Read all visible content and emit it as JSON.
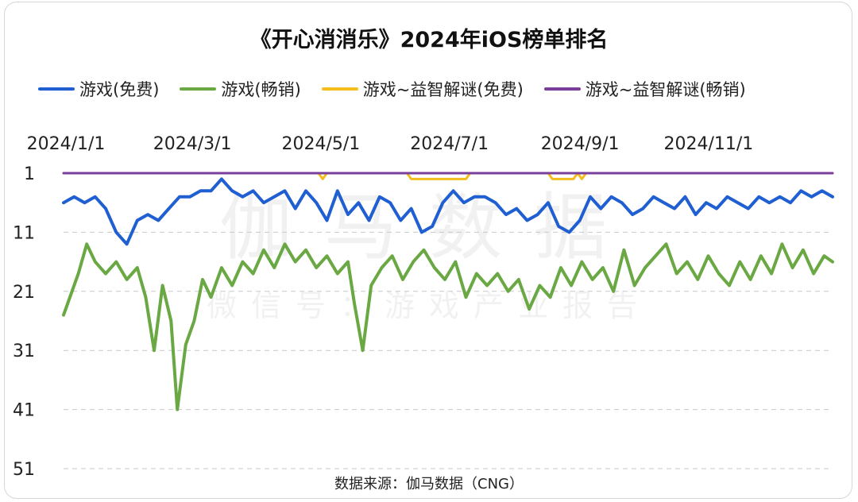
{
  "page": {
    "source": "数据来源：伽马数据（CNG）",
    "watermark_main": "伽马数据",
    "watermark_sub": "微信号：游戏产业报告"
  },
  "chart_data": {
    "type": "line",
    "title": "《开心消消乐》2024年iOS榜单排名",
    "xlabel": "",
    "ylabel": "",
    "y_inverted": true,
    "ylim": [
      1,
      51
    ],
    "yticks": [
      "1",
      "11",
      "21",
      "31",
      "41",
      "51"
    ],
    "xlim": [
      "2024-01-01",
      "2024-12-31"
    ],
    "xticks": [
      "2024/1/1",
      "2024/3/1",
      "2024/5/1",
      "2024/7/1",
      "2024/9/1",
      "2024/11/1"
    ],
    "xtick_dates": [
      "2024-01-01",
      "2024-03-01",
      "2024-05-01",
      "2024-07-01",
      "2024-09-01",
      "2024-11-01"
    ],
    "grid": "horizontal-dashed",
    "legend_position": "top",
    "series": [
      {
        "name": "游戏(免费)",
        "color": "#1f5fd1",
        "points": [
          [
            "2024-01-01",
            6
          ],
          [
            "2024-01-06",
            5
          ],
          [
            "2024-01-11",
            6
          ],
          [
            "2024-01-16",
            5
          ],
          [
            "2024-01-21",
            7
          ],
          [
            "2024-01-26",
            11
          ],
          [
            "2024-01-31",
            13
          ],
          [
            "2024-02-05",
            9
          ],
          [
            "2024-02-10",
            8
          ],
          [
            "2024-02-15",
            9
          ],
          [
            "2024-02-20",
            7
          ],
          [
            "2024-02-25",
            5
          ],
          [
            "2024-03-01",
            5
          ],
          [
            "2024-03-06",
            4
          ],
          [
            "2024-03-11",
            4
          ],
          [
            "2024-03-16",
            2
          ],
          [
            "2024-03-21",
            4
          ],
          [
            "2024-03-26",
            5
          ],
          [
            "2024-03-31",
            4
          ],
          [
            "2024-04-05",
            6
          ],
          [
            "2024-04-10",
            5
          ],
          [
            "2024-04-15",
            4
          ],
          [
            "2024-04-20",
            7
          ],
          [
            "2024-04-25",
            4
          ],
          [
            "2024-04-30",
            6
          ],
          [
            "2024-05-05",
            9
          ],
          [
            "2024-05-10",
            4
          ],
          [
            "2024-05-15",
            8
          ],
          [
            "2024-05-20",
            6
          ],
          [
            "2024-05-25",
            9
          ],
          [
            "2024-05-30",
            5
          ],
          [
            "2024-06-04",
            6
          ],
          [
            "2024-06-09",
            9
          ],
          [
            "2024-06-14",
            7
          ],
          [
            "2024-06-19",
            11
          ],
          [
            "2024-06-24",
            10
          ],
          [
            "2024-06-29",
            6
          ],
          [
            "2024-07-04",
            4
          ],
          [
            "2024-07-09",
            6
          ],
          [
            "2024-07-14",
            5
          ],
          [
            "2024-07-19",
            5
          ],
          [
            "2024-07-24",
            6
          ],
          [
            "2024-07-29",
            8
          ],
          [
            "2024-08-03",
            7
          ],
          [
            "2024-08-08",
            9
          ],
          [
            "2024-08-13",
            8
          ],
          [
            "2024-08-18",
            6
          ],
          [
            "2024-08-23",
            10
          ],
          [
            "2024-08-28",
            11
          ],
          [
            "2024-09-02",
            9
          ],
          [
            "2024-09-07",
            5
          ],
          [
            "2024-09-12",
            7
          ],
          [
            "2024-09-17",
            5
          ],
          [
            "2024-09-22",
            6
          ],
          [
            "2024-09-27",
            8
          ],
          [
            "2024-10-02",
            7
          ],
          [
            "2024-10-07",
            5
          ],
          [
            "2024-10-12",
            6
          ],
          [
            "2024-10-17",
            7
          ],
          [
            "2024-10-22",
            5
          ],
          [
            "2024-10-27",
            8
          ],
          [
            "2024-11-01",
            6
          ],
          [
            "2024-11-06",
            7
          ],
          [
            "2024-11-11",
            5
          ],
          [
            "2024-11-16",
            6
          ],
          [
            "2024-11-21",
            7
          ],
          [
            "2024-11-26",
            5
          ],
          [
            "2024-12-01",
            6
          ],
          [
            "2024-12-06",
            5
          ],
          [
            "2024-12-11",
            6
          ],
          [
            "2024-12-16",
            4
          ],
          [
            "2024-12-21",
            5
          ],
          [
            "2024-12-26",
            4
          ],
          [
            "2024-12-31",
            5
          ]
        ]
      },
      {
        "name": "游戏(畅销)",
        "color": "#6aa843",
        "points": [
          [
            "2024-01-01",
            25
          ],
          [
            "2024-01-04",
            22
          ],
          [
            "2024-01-08",
            18
          ],
          [
            "2024-01-12",
            13
          ],
          [
            "2024-01-16",
            16
          ],
          [
            "2024-01-21",
            18
          ],
          [
            "2024-01-26",
            16
          ],
          [
            "2024-01-31",
            19
          ],
          [
            "2024-02-05",
            17
          ],
          [
            "2024-02-09",
            22
          ],
          [
            "2024-02-13",
            31
          ],
          [
            "2024-02-17",
            20
          ],
          [
            "2024-02-21",
            26
          ],
          [
            "2024-02-24",
            41
          ],
          [
            "2024-02-28",
            30
          ],
          [
            "2024-03-03",
            26
          ],
          [
            "2024-03-07",
            19
          ],
          [
            "2024-03-11",
            22
          ],
          [
            "2024-03-16",
            17
          ],
          [
            "2024-03-21",
            20
          ],
          [
            "2024-03-26",
            16
          ],
          [
            "2024-03-31",
            18
          ],
          [
            "2024-04-05",
            14
          ],
          [
            "2024-04-10",
            17
          ],
          [
            "2024-04-15",
            13
          ],
          [
            "2024-04-20",
            16
          ],
          [
            "2024-04-25",
            14
          ],
          [
            "2024-04-30",
            17
          ],
          [
            "2024-05-05",
            15
          ],
          [
            "2024-05-10",
            18
          ],
          [
            "2024-05-15",
            16
          ],
          [
            "2024-05-18",
            23
          ],
          [
            "2024-05-22",
            31
          ],
          [
            "2024-05-26",
            20
          ],
          [
            "2024-05-31",
            17
          ],
          [
            "2024-06-05",
            15
          ],
          [
            "2024-06-10",
            19
          ],
          [
            "2024-06-15",
            16
          ],
          [
            "2024-06-20",
            14
          ],
          [
            "2024-06-25",
            17
          ],
          [
            "2024-06-30",
            19
          ],
          [
            "2024-07-05",
            16
          ],
          [
            "2024-07-10",
            22
          ],
          [
            "2024-07-15",
            18
          ],
          [
            "2024-07-20",
            20
          ],
          [
            "2024-07-25",
            18
          ],
          [
            "2024-07-30",
            21
          ],
          [
            "2024-08-04",
            19
          ],
          [
            "2024-08-09",
            24
          ],
          [
            "2024-08-14",
            20
          ],
          [
            "2024-08-19",
            22
          ],
          [
            "2024-08-24",
            17
          ],
          [
            "2024-08-29",
            20
          ],
          [
            "2024-09-03",
            16
          ],
          [
            "2024-09-08",
            19
          ],
          [
            "2024-09-13",
            17
          ],
          [
            "2024-09-18",
            21
          ],
          [
            "2024-09-23",
            14
          ],
          [
            "2024-09-28",
            20
          ],
          [
            "2024-10-03",
            17
          ],
          [
            "2024-10-08",
            15
          ],
          [
            "2024-10-13",
            13
          ],
          [
            "2024-10-18",
            18
          ],
          [
            "2024-10-23",
            16
          ],
          [
            "2024-10-28",
            19
          ],
          [
            "2024-11-02",
            15
          ],
          [
            "2024-11-07",
            18
          ],
          [
            "2024-11-12",
            20
          ],
          [
            "2024-11-17",
            16
          ],
          [
            "2024-11-22",
            19
          ],
          [
            "2024-11-27",
            15
          ],
          [
            "2024-12-02",
            18
          ],
          [
            "2024-12-07",
            13
          ],
          [
            "2024-12-12",
            17
          ],
          [
            "2024-12-17",
            14
          ],
          [
            "2024-12-22",
            18
          ],
          [
            "2024-12-27",
            15
          ],
          [
            "2024-12-31",
            16
          ]
        ]
      },
      {
        "name": "游戏~益智解谜(免费)",
        "color": "#f2bd1d",
        "points": [
          [
            "2024-01-01",
            1
          ],
          [
            "2024-05-01",
            1
          ],
          [
            "2024-05-03",
            2
          ],
          [
            "2024-05-05",
            1
          ],
          [
            "2024-06-12",
            1
          ],
          [
            "2024-06-14",
            2
          ],
          [
            "2024-07-10",
            2
          ],
          [
            "2024-07-12",
            1
          ],
          [
            "2024-08-18",
            1
          ],
          [
            "2024-08-20",
            2
          ],
          [
            "2024-08-30",
            2
          ],
          [
            "2024-09-01",
            1
          ],
          [
            "2024-09-03",
            2
          ],
          [
            "2024-09-05",
            1
          ],
          [
            "2024-12-31",
            1
          ]
        ]
      },
      {
        "name": "游戏~益智解谜(畅销)",
        "color": "#7a3f9a",
        "points": [
          [
            "2024-01-01",
            1
          ],
          [
            "2024-12-31",
            1
          ]
        ]
      }
    ]
  }
}
